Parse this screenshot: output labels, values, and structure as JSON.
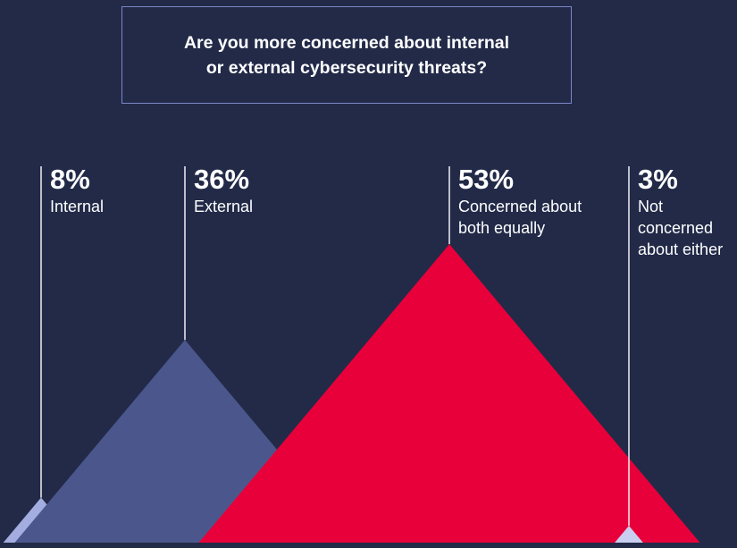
{
  "title": {
    "line1": "Are you more concerned about internal",
    "line2": "or external cybersecurity threats?"
  },
  "colors": {
    "background": "#222a48",
    "internal": "#a3addf",
    "external": "#4b578c",
    "both": "#e8003a",
    "neither": "#c9cff0",
    "pointer_line": "#ffffff",
    "title_border": "#7c87c7"
  },
  "chart_data": {
    "type": "bar",
    "title": "Are you more concerned about internal or external cybersecurity threats?",
    "mark": "triangle",
    "unit": "%",
    "categories": [
      {
        "value": 8,
        "value_label": "8%",
        "label_lines": [
          "Internal"
        ],
        "color": "#a3addf"
      },
      {
        "value": 36,
        "value_label": "36%",
        "label_lines": [
          "External"
        ],
        "color": "#4b578c"
      },
      {
        "value": 53,
        "value_label": "53%",
        "label_lines": [
          "Concerned about",
          "both equally"
        ],
        "color": "#e8003a"
      },
      {
        "value": 3,
        "value_label": "3%",
        "label_lines": [
          "Not",
          "concerned",
          "about either"
        ],
        "color": "#c9cff0"
      }
    ]
  }
}
